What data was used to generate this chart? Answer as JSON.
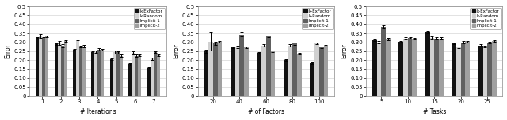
{
  "chart1": {
    "xlabel": "# Iterations",
    "ylabel": "Error",
    "xticks": [
      1,
      2,
      3,
      4,
      5,
      6,
      7
    ],
    "ylim": [
      0,
      0.5
    ],
    "series": {
      "k-ExFactor": [
        0.325,
        0.29,
        0.258,
        0.243,
        0.205,
        0.177,
        0.158
      ],
      "k-Random": [
        0.335,
        0.295,
        0.305,
        0.247,
        0.245,
        0.24,
        0.208
      ],
      "Implicit-1": [
        0.325,
        0.28,
        0.275,
        0.26,
        0.243,
        0.225,
        0.245
      ],
      "Implicit-2": [
        0.332,
        0.308,
        0.278,
        0.258,
        0.225,
        0.228,
        0.228
      ]
    },
    "errors": {
      "k-ExFactor": [
        0.005,
        0.005,
        0.005,
        0.005,
        0.005,
        0.005,
        0.005
      ],
      "k-Random": [
        0.01,
        0.01,
        0.008,
        0.008,
        0.008,
        0.008,
        0.008
      ],
      "Implicit-1": [
        0.005,
        0.008,
        0.005,
        0.005,
        0.005,
        0.005,
        0.005
      ],
      "Implicit-2": [
        0.005,
        0.005,
        0.005,
        0.005,
        0.005,
        0.005,
        0.005
      ]
    }
  },
  "chart2": {
    "xlabel": "# of Factors",
    "ylabel": "Error",
    "xticks": [
      20,
      40,
      60,
      80,
      100
    ],
    "ylim": [
      0,
      0.5
    ],
    "series": {
      "k-ExFactor": [
        0.25,
        0.273,
        0.24,
        0.202,
        0.182
      ],
      "k-Random": [
        0.303,
        0.273,
        0.282,
        0.282,
        0.293
      ],
      "Implicit-1": [
        0.293,
        0.343,
        0.332,
        0.292,
        0.273
      ],
      "Implicit-2": [
        0.302,
        0.272,
        0.25,
        0.237,
        0.28
      ]
    },
    "errors": {
      "k-ExFactor": [
        0.01,
        0.005,
        0.005,
        0.005,
        0.005
      ],
      "k-Random": [
        0.05,
        0.008,
        0.005,
        0.008,
        0.005
      ],
      "Implicit-1": [
        0.008,
        0.01,
        0.005,
        0.008,
        0.005
      ],
      "Implicit-2": [
        0.005,
        0.005,
        0.005,
        0.005,
        0.005
      ]
    }
  },
  "chart3": {
    "xlabel": "# Tasks",
    "ylabel": "Error",
    "xticks": [
      5,
      10,
      15,
      20,
      25
    ],
    "ylim": [
      0,
      0.5
    ],
    "series": {
      "k-ExFactor": [
        0.312,
        0.303,
        0.357,
        0.295,
        0.282
      ],
      "k-Random": [
        0.3,
        0.322,
        0.325,
        0.272,
        0.275
      ],
      "Implicit-1": [
        0.385,
        0.323,
        0.322,
        0.3,
        0.298
      ],
      "Implicit-2": [
        0.318,
        0.32,
        0.322,
        0.303,
        0.308
      ]
    },
    "errors": {
      "k-ExFactor": [
        0.005,
        0.005,
        0.008,
        0.005,
        0.005
      ],
      "k-Random": [
        0.005,
        0.005,
        0.008,
        0.005,
        0.005
      ],
      "Implicit-1": [
        0.008,
        0.005,
        0.005,
        0.005,
        0.005
      ],
      "Implicit-2": [
        0.005,
        0.005,
        0.005,
        0.005,
        0.005
      ]
    }
  },
  "bar_colors": {
    "k-ExFactor": "#111111",
    "k-Random": "#d0d0d0",
    "Implicit-1": "#606060",
    "Implicit-2": "#a0a0a0"
  },
  "legend_labels": [
    "k-ExFactor",
    "k-Random",
    "Implicit-1",
    "Implicit-2"
  ],
  "bar_width": 0.17,
  "font_size": 5.0
}
